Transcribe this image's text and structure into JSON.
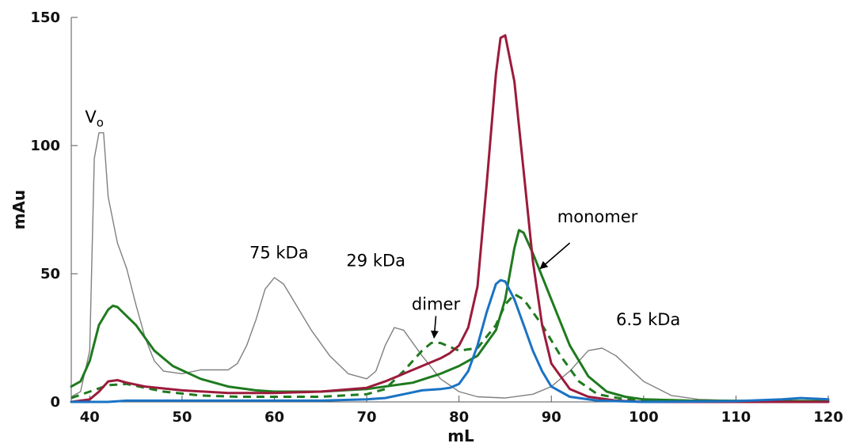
{
  "chart_data": {
    "type": "line",
    "title": "",
    "xlabel": "mL",
    "ylabel": "mAu",
    "xlim": [
      38,
      120
    ],
    "ylim": [
      0,
      150
    ],
    "x_ticks": [
      40,
      50,
      60,
      70,
      80,
      90,
      100,
      110,
      120
    ],
    "y_ticks": [
      0,
      50,
      100,
      150
    ],
    "grid": false,
    "legend": "none",
    "series": [
      {
        "color": "#808080",
        "style": "thin-solid",
        "points": [
          [
            38,
            2
          ],
          [
            39,
            4
          ],
          [
            40,
            20
          ],
          [
            40.5,
            95
          ],
          [
            41,
            105
          ],
          [
            41.5,
            105
          ],
          [
            42,
            80
          ],
          [
            43,
            62
          ],
          [
            44,
            52
          ],
          [
            45,
            38
          ],
          [
            46,
            25
          ],
          [
            47,
            16
          ],
          [
            48,
            12
          ],
          [
            50,
            11
          ],
          [
            52,
            12.5
          ],
          [
            55,
            12.5
          ],
          [
            56,
            15
          ],
          [
            57,
            22
          ],
          [
            58,
            32
          ],
          [
            59,
            44
          ],
          [
            60,
            48.5
          ],
          [
            61,
            46
          ],
          [
            62,
            40
          ],
          [
            64,
            28
          ],
          [
            66,
            18
          ],
          [
            68,
            11
          ],
          [
            70,
            9
          ],
          [
            71,
            12
          ],
          [
            72,
            22
          ],
          [
            73,
            29
          ],
          [
            74,
            28
          ],
          [
            76,
            18
          ],
          [
            78,
            9
          ],
          [
            80,
            4
          ],
          [
            82,
            2
          ],
          [
            85,
            1.5
          ],
          [
            88,
            3
          ],
          [
            90,
            6
          ],
          [
            92,
            12
          ],
          [
            94,
            20
          ],
          [
            95.5,
            21
          ],
          [
            97,
            18
          ],
          [
            100,
            8
          ],
          [
            103,
            2.5
          ],
          [
            106,
            1
          ],
          [
            110,
            0.5
          ],
          [
            120,
            0.5
          ]
        ]
      },
      {
        "color": "#1f7a1f",
        "style": "solid",
        "points": [
          [
            38,
            6
          ],
          [
            39,
            8
          ],
          [
            40,
            16
          ],
          [
            41,
            30
          ],
          [
            42,
            36
          ],
          [
            42.5,
            37.5
          ],
          [
            43,
            37
          ],
          [
            45,
            30
          ],
          [
            47,
            20
          ],
          [
            49,
            14
          ],
          [
            52,
            9
          ],
          [
            55,
            6
          ],
          [
            58,
            4.5
          ],
          [
            60,
            4
          ],
          [
            65,
            4
          ],
          [
            70,
            5
          ],
          [
            75,
            7.5
          ],
          [
            78,
            11
          ],
          [
            80,
            14
          ],
          [
            82,
            18
          ],
          [
            84,
            28
          ],
          [
            85,
            40
          ],
          [
            86,
            60
          ],
          [
            86.5,
            67
          ],
          [
            87,
            66
          ],
          [
            88,
            58
          ],
          [
            90,
            40
          ],
          [
            92,
            22
          ],
          [
            94,
            10
          ],
          [
            96,
            4
          ],
          [
            98,
            2
          ],
          [
            100,
            1
          ],
          [
            105,
            0.5
          ],
          [
            120,
            0.3
          ]
        ]
      },
      {
        "color": "#1f7a1f",
        "style": "dashed",
        "points": [
          [
            38,
            1.5
          ],
          [
            40,
            4
          ],
          [
            42,
            6.5
          ],
          [
            44,
            7
          ],
          [
            46,
            5.5
          ],
          [
            48,
            4
          ],
          [
            52,
            2.5
          ],
          [
            56,
            2
          ],
          [
            60,
            2
          ],
          [
            65,
            2
          ],
          [
            70,
            3
          ],
          [
            72,
            5
          ],
          [
            74,
            12
          ],
          [
            76,
            20
          ],
          [
            77,
            23
          ],
          [
            78,
            23
          ],
          [
            80,
            20
          ],
          [
            82,
            21
          ],
          [
            84,
            30
          ],
          [
            85,
            38
          ],
          [
            86,
            42
          ],
          [
            87,
            40
          ],
          [
            89,
            30
          ],
          [
            91,
            18
          ],
          [
            93,
            8
          ],
          [
            95,
            3
          ],
          [
            98,
            1
          ],
          [
            105,
            0.3
          ],
          [
            120,
            0
          ]
        ]
      },
      {
        "color": "#9b1b3c",
        "style": "solid",
        "points": [
          [
            38,
            0
          ],
          [
            40,
            1
          ],
          [
            41,
            4
          ],
          [
            42,
            8
          ],
          [
            43,
            8.5
          ],
          [
            44,
            7.5
          ],
          [
            46,
            6
          ],
          [
            50,
            4.5
          ],
          [
            55,
            3.5
          ],
          [
            60,
            3.5
          ],
          [
            65,
            4
          ],
          [
            70,
            5.5
          ],
          [
            72,
            8
          ],
          [
            74,
            11
          ],
          [
            76,
            14
          ],
          [
            78,
            17
          ],
          [
            79,
            19
          ],
          [
            80,
            22
          ],
          [
            81,
            29
          ],
          [
            82,
            45
          ],
          [
            83,
            85
          ],
          [
            84,
            128
          ],
          [
            84.5,
            142
          ],
          [
            85,
            143
          ],
          [
            86,
            125
          ],
          [
            87,
            90
          ],
          [
            88,
            55
          ],
          [
            89,
            30
          ],
          [
            90,
            15
          ],
          [
            92,
            5
          ],
          [
            94,
            2
          ],
          [
            97,
            0.5
          ],
          [
            100,
            0
          ],
          [
            120,
            0
          ]
        ]
      },
      {
        "color": "#1a73c4",
        "style": "solid",
        "points": [
          [
            38,
            0
          ],
          [
            42,
            0
          ],
          [
            44,
            0.5
          ],
          [
            50,
            0.5
          ],
          [
            60,
            0.5
          ],
          [
            65,
            0.5
          ],
          [
            70,
            1
          ],
          [
            72,
            1.5
          ],
          [
            74,
            3
          ],
          [
            76,
            4.5
          ],
          [
            78,
            5
          ],
          [
            79,
            5.5
          ],
          [
            80,
            7
          ],
          [
            81,
            12
          ],
          [
            82,
            22
          ],
          [
            83,
            35
          ],
          [
            84,
            46
          ],
          [
            84.5,
            47.5
          ],
          [
            85,
            47
          ],
          [
            86,
            40
          ],
          [
            87,
            30
          ],
          [
            88,
            20
          ],
          [
            89,
            12
          ],
          [
            90,
            6
          ],
          [
            92,
            2
          ],
          [
            95,
            0.5
          ],
          [
            100,
            0
          ],
          [
            110,
            0.3
          ],
          [
            115,
            1
          ],
          [
            117,
            1.5
          ],
          [
            119,
            1.2
          ],
          [
            120,
            1
          ]
        ]
      }
    ],
    "annotations": [
      {
        "text": "V",
        "subscript": "o",
        "x": 40.5,
        "y": 109
      },
      {
        "text": "75 kDa",
        "x": 60.5,
        "y": 56
      },
      {
        "text": "29 kDa",
        "x": 71,
        "y": 53
      },
      {
        "text": "dimer",
        "x": 77.5,
        "y": 36
      },
      {
        "text": "monomer",
        "x": 95,
        "y": 70
      },
      {
        "text": "6.5 kDa",
        "x": 100.5,
        "y": 30
      }
    ],
    "arrows": [
      {
        "from": [
          77.5,
          33.5
        ],
        "to": [
          77.3,
          25
        ]
      },
      {
        "from": [
          92,
          62
        ],
        "to": [
          88.8,
          52
        ]
      }
    ]
  }
}
